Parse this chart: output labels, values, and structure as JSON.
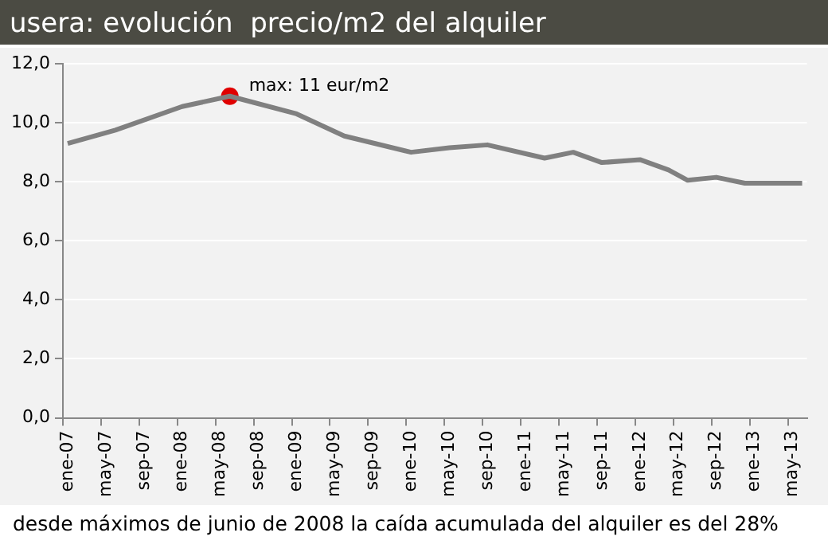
{
  "chart_data": {
    "type": "line",
    "title": "usera: evolución  precio/m2 del alquiler",
    "categories": [
      "ene-07",
      null,
      null,
      null,
      "may-07",
      null,
      null,
      null,
      "sep-07",
      null,
      null,
      null,
      "ene-08",
      null,
      null,
      null,
      "may-08",
      null,
      null,
      null,
      "sep-08",
      null,
      null,
      null,
      "ene-09",
      null,
      null,
      null,
      "may-09",
      null,
      null,
      null,
      "sep-09",
      null,
      null,
      null,
      "ene-10",
      null,
      null,
      null,
      "may-10",
      null,
      null,
      null,
      "sep-10",
      null,
      null,
      null,
      "ene-11",
      null,
      null,
      null,
      "may-11",
      null,
      null,
      null,
      "sep-11",
      null,
      null,
      null,
      "ene-12",
      null,
      null,
      null,
      "may-12",
      null,
      null,
      null,
      "sep-12",
      null,
      null,
      null,
      "ene-13",
      null,
      null,
      null,
      "may-13",
      null
    ],
    "series": [
      {
        "color": "#808080",
        "marker": "none",
        "values": [
          9.3,
          null,
          null,
          null,
          null,
          9.75,
          null,
          null,
          null,
          null,
          null,
          null,
          10.55,
          null,
          null,
          null,
          null,
          10.9,
          null,
          null,
          null,
          null,
          null,
          null,
          10.3,
          null,
          null,
          null,
          null,
          9.55,
          null,
          null,
          null,
          null,
          null,
          null,
          9.0,
          null,
          null,
          null,
          9.15,
          null,
          null,
          null,
          9.25,
          null,
          null,
          null,
          null,
          null,
          8.8,
          null,
          null,
          9.0,
          null,
          null,
          8.65,
          null,
          null,
          null,
          8.75,
          null,
          null,
          8.4,
          null,
          8.05,
          null,
          null,
          8.15,
          null,
          null,
          7.95,
          null,
          null,
          null,
          null,
          null,
          7.95
        ]
      },
      {
        "type": "scatter",
        "color": "#e00000",
        "marker": "circle",
        "values": [
          null,
          null,
          null,
          null,
          null,
          null,
          null,
          null,
          null,
          null,
          null,
          null,
          null,
          null,
          null,
          null,
          null,
          10.9,
          null,
          null,
          null,
          null,
          null,
          null,
          null,
          null,
          null,
          null,
          null,
          null,
          null,
          null,
          null,
          null,
          null,
          null,
          null,
          null,
          null,
          null,
          null,
          null,
          null,
          null,
          null,
          null,
          null,
          null,
          null,
          null,
          null,
          null,
          null,
          null,
          null,
          null,
          null,
          null,
          null,
          null,
          null,
          null,
          null,
          null,
          null,
          null,
          null,
          null,
          null,
          null,
          null,
          null,
          null,
          null,
          null,
          null,
          null,
          null
        ]
      }
    ],
    "ylim": [
      0,
      12
    ],
    "yticks": [
      {
        "value": 0,
        "label": "0,0"
      },
      {
        "value": 2,
        "label": "2,0"
      },
      {
        "value": 4,
        "label": "4,0"
      },
      {
        "value": 6,
        "label": "6,0"
      },
      {
        "value": 8,
        "label": "8,0"
      },
      {
        "value": 10,
        "label": "10,0"
      },
      {
        "value": 12,
        "label": "12,0"
      }
    ],
    "grid": "y",
    "legend": false,
    "annotations": [
      "max: 11 eur/m2",
      "desde máximos de junio de 2008 la caída acumulada del alquiler es del 28%"
    ]
  }
}
